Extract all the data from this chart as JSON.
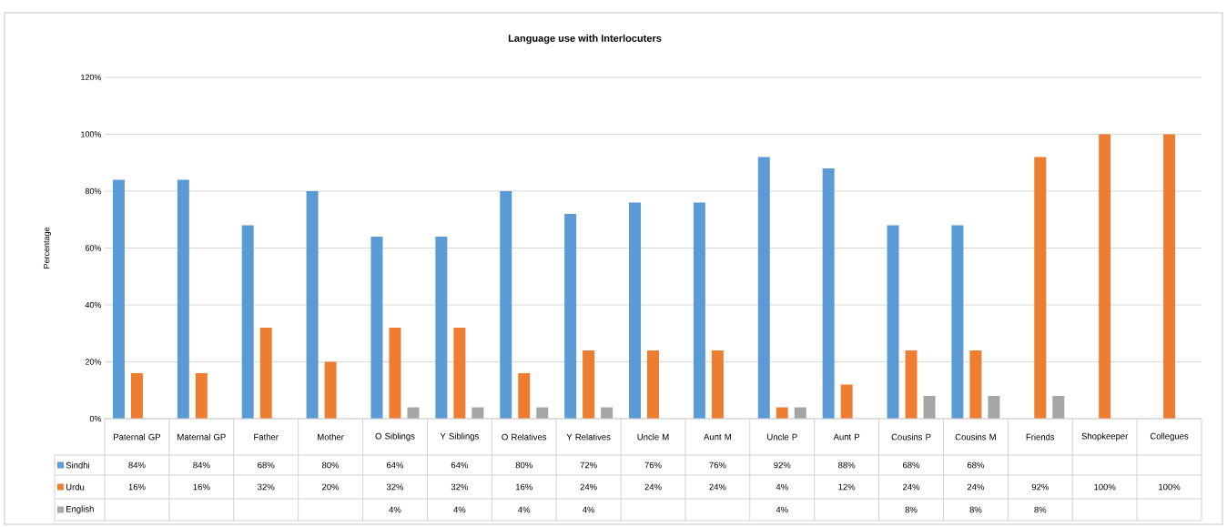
{
  "chart_data": {
    "type": "bar",
    "title": "Language use with Interlocuters",
    "ylabel": "Percentage",
    "categories": [
      "Paternal GP",
      "Maternal GP",
      "Father",
      "Mother",
      "O Siblings",
      "Y Siblings",
      "O Relatives",
      "Y Relatives",
      "Uncle M",
      "Aunt M",
      "Uncle P",
      "Aunt P",
      "Cousins P",
      "Cousins M",
      "Friends",
      "Shopkeeper",
      "Collegues"
    ],
    "series": [
      {
        "name": "Sindhi",
        "color": "#5b9bd5",
        "values": [
          84,
          84,
          68,
          80,
          64,
          64,
          80,
          72,
          76,
          76,
          92,
          88,
          68,
          68,
          null,
          null,
          null
        ],
        "value_labels": [
          "84%",
          "84%",
          "68%",
          "80%",
          "64%",
          "64%",
          "80%",
          "72%",
          "76%",
          "76%",
          "92%",
          "88%",
          "68%",
          "68%",
          null,
          null,
          null
        ]
      },
      {
        "name": "Urdu",
        "color": "#ed7d31",
        "values": [
          16,
          16,
          32,
          20,
          32,
          32,
          16,
          24,
          24,
          24,
          4,
          12,
          24,
          24,
          92,
          100,
          100
        ],
        "value_labels": [
          "16%",
          "16%",
          "32%",
          "20%",
          "32%",
          "32%",
          "16%",
          "24%",
          "24%",
          "24%",
          "4%",
          "12%",
          "24%",
          "24%",
          "92%",
          "100%",
          "100%"
        ]
      },
      {
        "name": "English",
        "color": "#a5a5a5",
        "values": [
          null,
          null,
          null,
          null,
          4,
          4,
          4,
          4,
          null,
          null,
          4,
          null,
          8,
          8,
          8,
          null,
          null
        ],
        "value_labels": [
          null,
          null,
          null,
          null,
          "4%",
          "4%",
          "4%",
          "4%",
          null,
          null,
          "4%",
          null,
          "8%",
          "8%",
          "8%",
          null,
          null
        ]
      }
    ],
    "ylim": [
      0,
      120
    ],
    "yticks": [
      {
        "value": 0,
        "label": "0%"
      },
      {
        "value": 20,
        "label": "20%"
      },
      {
        "value": 40,
        "label": "40%"
      },
      {
        "value": 60,
        "label": "60%"
      },
      {
        "value": 80,
        "label": "80%"
      },
      {
        "value": 100,
        "label": "100%"
      },
      {
        "value": 120,
        "label": "120%"
      }
    ],
    "grid": "y",
    "legend": "bottom"
  }
}
